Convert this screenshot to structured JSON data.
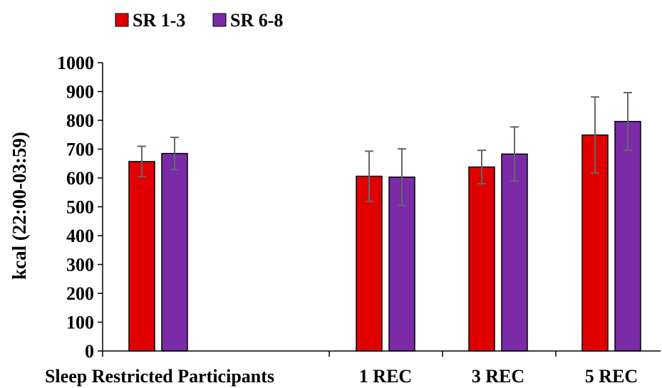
{
  "chart_data": {
    "type": "bar",
    "title": "",
    "xlabel": "",
    "ylabel": "kcal (22:00-03:59)",
    "ylim": [
      0,
      1000
    ],
    "yticks": [
      "0",
      "100",
      "200",
      "300",
      "400",
      "500",
      "600",
      "700",
      "800",
      "900",
      "1000"
    ],
    "categories": [
      "Sleep Restricted Participants",
      "1 REC",
      "3 REC",
      "5 REC"
    ],
    "legend_position": "top-left",
    "grid": false,
    "error_bars": true,
    "series": [
      {
        "name": "SR 1-3",
        "color": "#e00000",
        "values": [
          657,
          606,
          638,
          749
        ],
        "errors": [
          53,
          87,
          58,
          132
        ]
      },
      {
        "name": "SR 6-8",
        "color": "#7b2aa8",
        "values": [
          685,
          603,
          683,
          796
        ],
        "errors": [
          56,
          98,
          94,
          100
        ]
      }
    ]
  }
}
